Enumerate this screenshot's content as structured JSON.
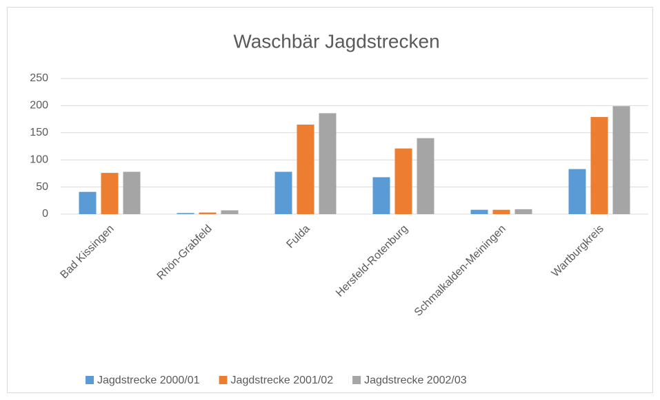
{
  "chart_data": {
    "type": "bar",
    "title": "Waschbär Jagdstrecken",
    "categories": [
      "Bad Kissingen",
      "Rhön-Grabfeld",
      "Fulda",
      "Hersfeld-Rotenburg",
      "Schmalkalden-Meiningen",
      "Wartburgkreis"
    ],
    "series": [
      {
        "name": "Jagdstrecke 2000/01",
        "color": "#5b9bd5",
        "values": [
          41,
          2,
          78,
          68,
          8,
          83
        ]
      },
      {
        "name": "Jagdstrecke 2001/02",
        "color": "#ed7d31",
        "values": [
          76,
          3,
          165,
          121,
          8,
          179
        ]
      },
      {
        "name": "Jagdstrecke 2002/03",
        "color": "#a5a5a5",
        "values": [
          78,
          7,
          186,
          140,
          9,
          199
        ]
      }
    ],
    "ylim": [
      0,
      250
    ],
    "yticks": [
      0,
      50,
      100,
      150,
      200,
      250
    ],
    "grid": true,
    "legend": "bottom"
  }
}
